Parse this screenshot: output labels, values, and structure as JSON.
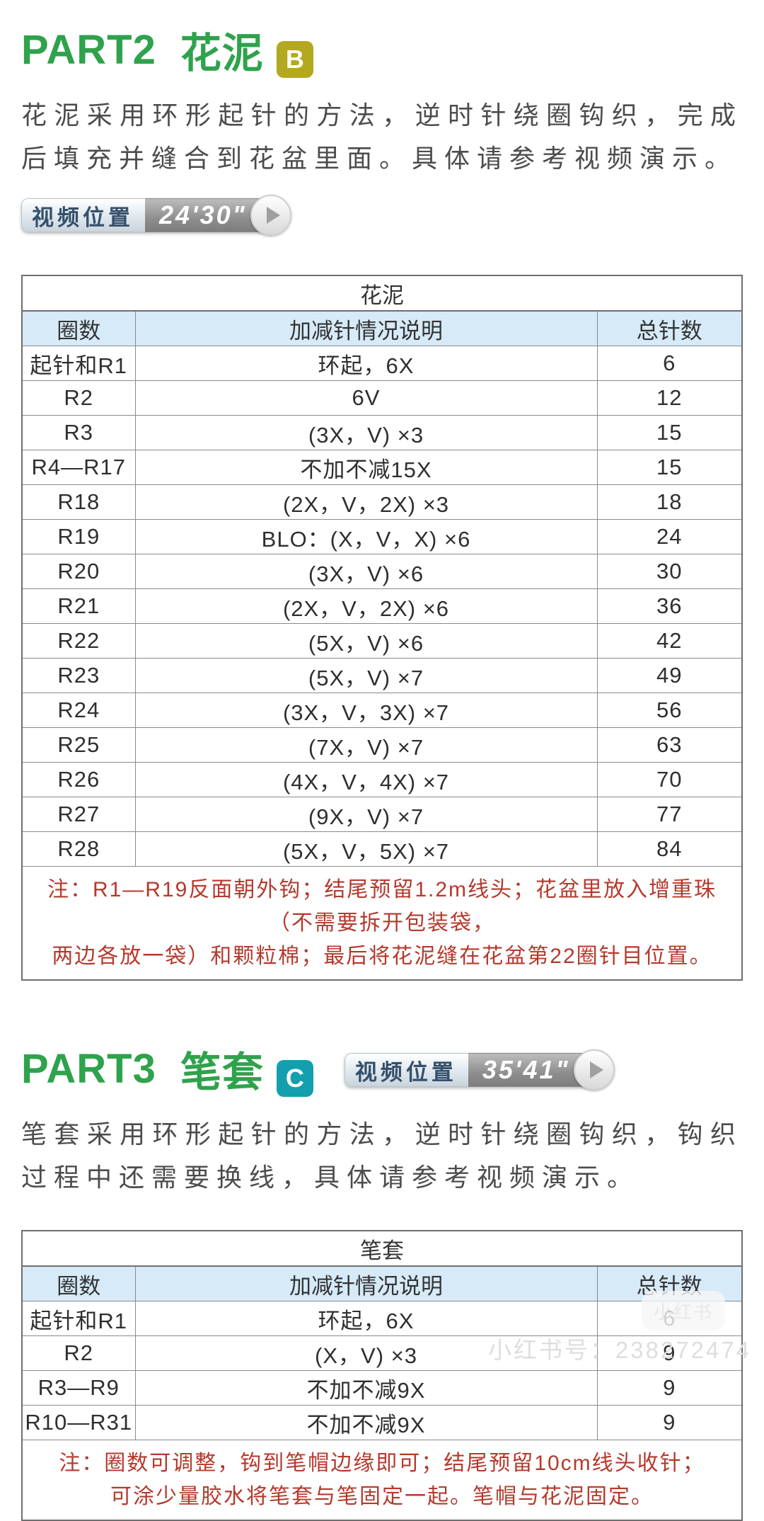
{
  "colors": {
    "heading_green": "#2fa24c",
    "badge_b": "#b3a81f",
    "badge_c": "#149fae",
    "table_header_bg": "#d6eaf8",
    "note_red": "#b5392c"
  },
  "part2": {
    "heading": "PART2",
    "name": "花泥",
    "badge": "B",
    "intro": "花泥采用环形起针的方法，逆时针绕圈钩织，完成后填充并缝合到花盆里面。具体请参考视频演示。",
    "video": {
      "label": "视频位置",
      "time": "24'30\""
    },
    "table": {
      "title": "花泥",
      "headers": [
        "圈数",
        "加减针情况说明",
        "总针数"
      ],
      "rows": [
        [
          "起针和R1",
          "环起，6X",
          "6"
        ],
        [
          "R2",
          "6V",
          "12"
        ],
        [
          "R3",
          "(3X，V) ×3",
          "15"
        ],
        [
          "R4—R17",
          "不加不减15X",
          "15"
        ],
        [
          "R18",
          "(2X，V，2X) ×3",
          "18"
        ],
        [
          "R19",
          "BLO：(X，V，X) ×6",
          "24"
        ],
        [
          "R20",
          "(3X，V) ×6",
          "30"
        ],
        [
          "R21",
          "(2X，V，2X) ×6",
          "36"
        ],
        [
          "R22",
          "(5X，V) ×6",
          "42"
        ],
        [
          "R23",
          "(5X，V) ×7",
          "49"
        ],
        [
          "R24",
          "(3X，V，3X) ×7",
          "56"
        ],
        [
          "R25",
          "(7X，V) ×7",
          "63"
        ],
        [
          "R26",
          "(4X，V，4X) ×7",
          "70"
        ],
        [
          "R27",
          "(9X，V) ×7",
          "77"
        ],
        [
          "R28",
          "(5X，V，5X) ×7",
          "84"
        ]
      ],
      "note_lines": [
        "注：R1—R19反面朝外钩；结尾预留1.2m线头；花盆里放入增重珠（不需要拆开包装袋，",
        "两边各放一袋）和颗粒棉；最后将花泥缝在花盆第22圈针目位置。"
      ]
    }
  },
  "part3": {
    "heading": "PART3",
    "name": "笔套",
    "badge": "C",
    "intro": "笔套采用环形起针的方法，逆时针绕圈钩织，钩织过程中还需要换线，具体请参考视频演示。",
    "video": {
      "label": "视频位置",
      "time": "35'41\""
    },
    "table": {
      "title": "笔套",
      "headers": [
        "圈数",
        "加减针情况说明",
        "总针数"
      ],
      "rows": [
        [
          "起针和R1",
          "环起，6X",
          "6"
        ],
        [
          "R2",
          "(X，V) ×3",
          "9"
        ],
        [
          "R3—R9",
          "不加不减9X",
          "9"
        ],
        [
          "R10—R31",
          "不加不减9X",
          "9"
        ]
      ],
      "note_lines": [
        "注：圈数可调整，钩到笔帽边缘即可；结尾预留10cm线头收针；",
        "可涂少量胶水将笔套与笔固定一起。笔帽与花泥固定。"
      ]
    }
  },
  "watermark": {
    "logo": "小红书",
    "id_text": "小红书号：238272474"
  }
}
